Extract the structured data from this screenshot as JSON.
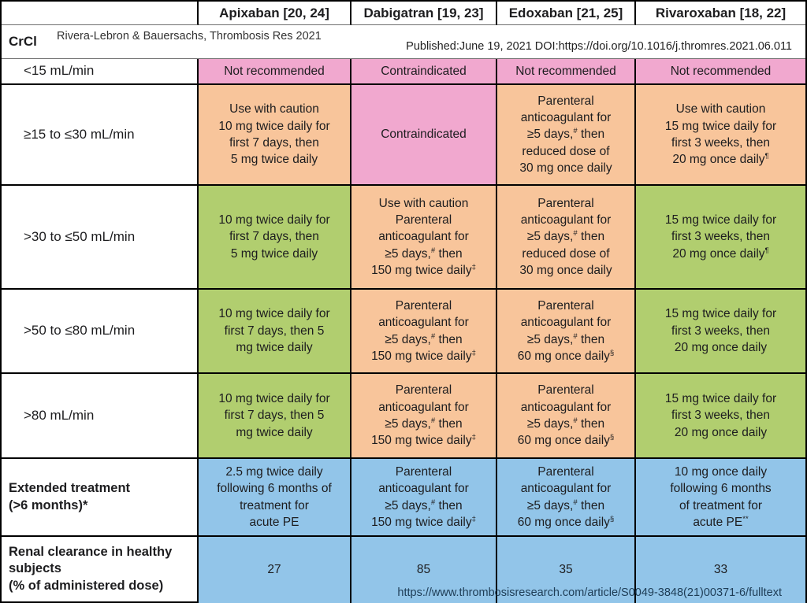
{
  "header": {
    "corner_label": "",
    "columns": [
      "Apixaban [20, 24]",
      "Dabigatran [19, 23]",
      "Edoxaban [21, 25]",
      "Rivaroxaban [18, 22]"
    ]
  },
  "crcl_row": {
    "label": "CrCl",
    "citation": "Rivera-Lebron & Bauersachs, Thrombosis Res 2021",
    "published": "Published:June 19, 2021 DOI:https://doi.org/10.1016/j.thromres.2021.06.011"
  },
  "colors": {
    "pink": "#F1A8CF",
    "orange": "#F8C59B",
    "green": "#B1CE6F",
    "blue": "#92C5E9",
    "white": "#FFFFFF"
  },
  "rows": [
    {
      "label": "<15 mL/min",
      "label_bold": false,
      "cells": [
        {
          "color": "pink",
          "text": "Not recommended"
        },
        {
          "color": "pink",
          "text": "Contraindicated"
        },
        {
          "color": "pink",
          "text": "Not recommended"
        },
        {
          "color": "pink",
          "text": "Not recommended"
        }
      ]
    },
    {
      "label": "≥15 to ≤30 mL/min",
      "label_bold": false,
      "cells": [
        {
          "color": "orange",
          "text": "Use with caution\n10 mg twice daily for\nfirst 7 days, then\n5 mg twice daily"
        },
        {
          "color": "pink",
          "text": "Contraindicated"
        },
        {
          "color": "orange",
          "text": "Parenteral\nanticoagulant for\n≥5 days,^#^ then\nreduced dose of\n30 mg once daily"
        },
        {
          "color": "orange",
          "text": "Use with caution\n15 mg twice daily for\nfirst 3 weeks, then\n20 mg once daily^¶^"
        }
      ]
    },
    {
      "label": ">30 to ≤50 mL/min",
      "label_bold": false,
      "cells": [
        {
          "color": "green",
          "text": "10 mg twice daily for\nfirst 7 days, then\n5 mg twice daily"
        },
        {
          "color": "orange",
          "text": "Use with caution\nParenteral\nanticoagulant for\n≥5 days,^#^ then\n150 mg twice daily^‡^"
        },
        {
          "color": "orange",
          "text": "Parenteral\nanticoagulant for\n≥5 days,^#^ then\nreduced dose of\n30 mg once daily"
        },
        {
          "color": "green",
          "text": "15 mg twice daily for\nfirst 3 weeks, then\n20 mg once daily^¶^"
        }
      ]
    },
    {
      "label": ">50 to ≤80 mL/min",
      "label_bold": false,
      "cells": [
        {
          "color": "green",
          "text": "10 mg twice daily for\nfirst 7 days, then 5\nmg twice daily"
        },
        {
          "color": "orange",
          "text": "Parenteral\nanticoagulant for\n≥5 days,^#^ then\n150 mg twice daily^‡^"
        },
        {
          "color": "orange",
          "text": "Parenteral\nanticoagulant for\n≥5 days,^#^ then\n60 mg once daily^§^"
        },
        {
          "color": "green",
          "text": "15 mg twice daily for\nfirst 3 weeks, then\n20 mg once daily"
        }
      ]
    },
    {
      "label": ">80 mL/min",
      "label_bold": false,
      "cells": [
        {
          "color": "green",
          "text": "10 mg twice daily for\nfirst 7 days, then 5\nmg twice daily"
        },
        {
          "color": "orange",
          "text": "Parenteral\nanticoagulant for\n≥5 days,^#^ then\n150 mg twice daily^‡^"
        },
        {
          "color": "orange",
          "text": "Parenteral\nanticoagulant for\n≥5 days,^#^ then\n60 mg once daily^§^"
        },
        {
          "color": "green",
          "text": "15 mg twice daily for\nfirst 3 weeks, then\n20 mg once daily"
        }
      ]
    },
    {
      "label": "Extended treatment\n(>6 months)*",
      "label_bold": true,
      "cells": [
        {
          "color": "blue",
          "text": "2.5 mg twice daily\nfollowing 6 months of\ntreatment for\nacute PE"
        },
        {
          "color": "blue",
          "text": "Parenteral\nanticoagulant for\n≥5 days,^#^ then\n150 mg twice daily^‡^"
        },
        {
          "color": "blue",
          "text": "Parenteral\nanticoagulant for\n≥5 days,^#^ then\n60 mg once daily^§^"
        },
        {
          "color": "blue",
          "text": "10 mg once daily\nfollowing 6 months\nof treatment for\nacute PE^**^"
        }
      ]
    },
    {
      "label": "Renal clearance in healthy\nsubjects\n(% of administered dose)",
      "label_bold": true,
      "cells": [
        {
          "color": "blue",
          "text": "27"
        },
        {
          "color": "blue",
          "text": "85"
        },
        {
          "color": "blue",
          "text": "35"
        },
        {
          "color": "blue",
          "text": "33"
        }
      ]
    }
  ],
  "footer_url": "https://www.thrombosisresearch.com/article/S0049-3848(21)00371-6/fulltext"
}
